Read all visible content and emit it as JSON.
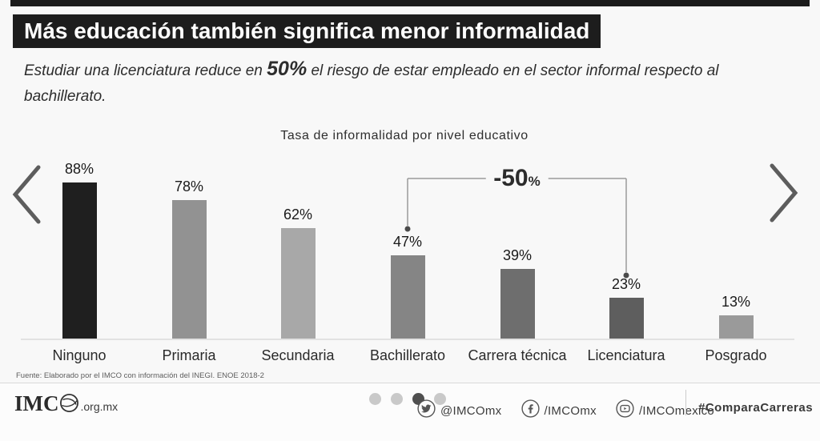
{
  "header": {
    "title": "Más educación también significa menor informalidad"
  },
  "subtitle": {
    "pre": "Estudiar una licenciatura reduce en ",
    "highlight": "50%",
    "post": " el riesgo de estar empleado en el sector informal respecto al bachillerato."
  },
  "chart_data": {
    "type": "bar",
    "title": "Tasa de informalidad por nivel educativo",
    "categories": [
      "Ninguno",
      "Primaria",
      "Secundaria",
      "Bachillerato",
      "Carrera técnica",
      "Licenciatura",
      "Posgrado"
    ],
    "values": [
      88,
      78,
      62,
      47,
      39,
      23,
      13
    ],
    "value_labels": [
      "88%",
      "78%",
      "62%",
      "47%",
      "39%",
      "23%",
      "13%"
    ],
    "bar_colors": [
      "#1f1f1f",
      "#929292",
      "#a8a8a8",
      "#858585",
      "#6e6e6e",
      "#5e5e5e",
      "#9a9a9a"
    ],
    "ylim": [
      0,
      100
    ],
    "grid": false,
    "annotation": {
      "label_main": "-50",
      "label_pct": "%",
      "from_category": "Bachillerato",
      "from_index": 3,
      "to_category": "Licenciatura",
      "to_index": 5
    }
  },
  "source": {
    "text": "Fuente: Elaborado por el IMCO con información del INEGI. ENOE 2018-2"
  },
  "footer": {
    "logo_prefix": "IMC",
    "logo_domain": ".org.mx",
    "pagination": {
      "count": 4,
      "active_index": 2
    },
    "social": [
      {
        "icon": "twitter-icon",
        "handle": "@IMCOmx"
      },
      {
        "icon": "facebook-icon",
        "handle": "/IMCOmx"
      },
      {
        "icon": "youtube-icon",
        "handle": "/IMCOmexico"
      }
    ],
    "hashtag": "#ComparaCarreras",
    "colors": {
      "dot_active": "#4f4f4f",
      "dot_inactive": "#c9c9c9",
      "line": "#9a9a9a",
      "dot_marker": "#4a4a4a"
    }
  }
}
